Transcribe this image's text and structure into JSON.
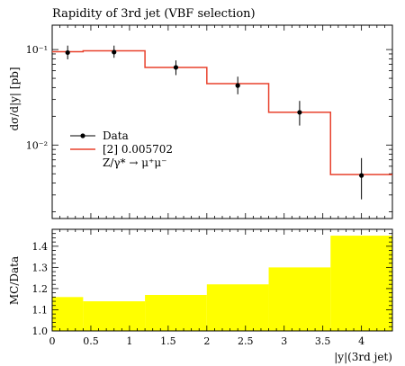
{
  "chart_data": [
    {
      "type": "line",
      "title": "Rapidity of 3rd jet (VBF selection)",
      "ylabel": "dσ/d|y| [pb]",
      "xlabel": "",
      "yscale": "log",
      "ylim": [
        0.0017,
        0.18
      ],
      "xlim": [
        0,
        4.4
      ],
      "ytick_labels": [
        "10⁻¹",
        "10⁻²"
      ],
      "ytick_values": [
        0.1,
        0.01
      ],
      "bin_edges": [
        0,
        0.4,
        1.2,
        2.0,
        2.8,
        3.6,
        4.4
      ],
      "series": [
        {
          "name": "Data",
          "style": "points-with-errorbars",
          "color": "#000000",
          "points": [
            {
              "x": 0.2,
              "y": 0.093,
              "ylow": 0.079,
              "yhigh": 0.11
            },
            {
              "x": 0.8,
              "y": 0.094,
              "ylow": 0.082,
              "yhigh": 0.11
            },
            {
              "x": 1.6,
              "y": 0.065,
              "ylow": 0.054,
              "yhigh": 0.077
            },
            {
              "x": 2.4,
              "y": 0.042,
              "ylow": 0.034,
              "yhigh": 0.052
            },
            {
              "x": 3.2,
              "y": 0.022,
              "ylow": 0.016,
              "yhigh": 0.029
            },
            {
              "x": 4.0,
              "y": 0.0048,
              "ylow": 0.0027,
              "yhigh": 0.0073
            }
          ]
        },
        {
          "name": "[2] 0.005702",
          "style": "histogram-step",
          "color": "#e8412c",
          "values": [
            0.095,
            0.097,
            0.065,
            0.044,
            0.022,
            0.0049
          ]
        }
      ],
      "legend": {
        "placement": "middle-left",
        "entries": [
          "Data",
          "[2] 0.005702",
          "Z/γ* → μ⁺μ⁻"
        ]
      }
    },
    {
      "type": "area",
      "ylabel": "MC/Data",
      "xlabel": "|y|(3rd jet)",
      "ylim": [
        1.0,
        1.48
      ],
      "xlim": [
        0,
        4.4
      ],
      "ytick_labels": [
        "1.0",
        "1.1",
        "1.2",
        "1.3",
        "1.4"
      ],
      "xtick_labels": [
        "0",
        "0.5",
        "1",
        "1.5",
        "2",
        "2.5",
        "3",
        "3.5",
        "4"
      ],
      "bin_edges": [
        0,
        0.4,
        1.2,
        2.0,
        2.8,
        3.6,
        4.4
      ],
      "series": [
        {
          "name": "",
          "color": "#ffff00",
          "band_low": [
            1.0,
            1.0,
            1.0,
            1.0,
            1.0,
            1.0
          ],
          "band_high": [
            1.16,
            1.14,
            1.17,
            1.22,
            1.3,
            1.45
          ]
        }
      ]
    }
  ]
}
